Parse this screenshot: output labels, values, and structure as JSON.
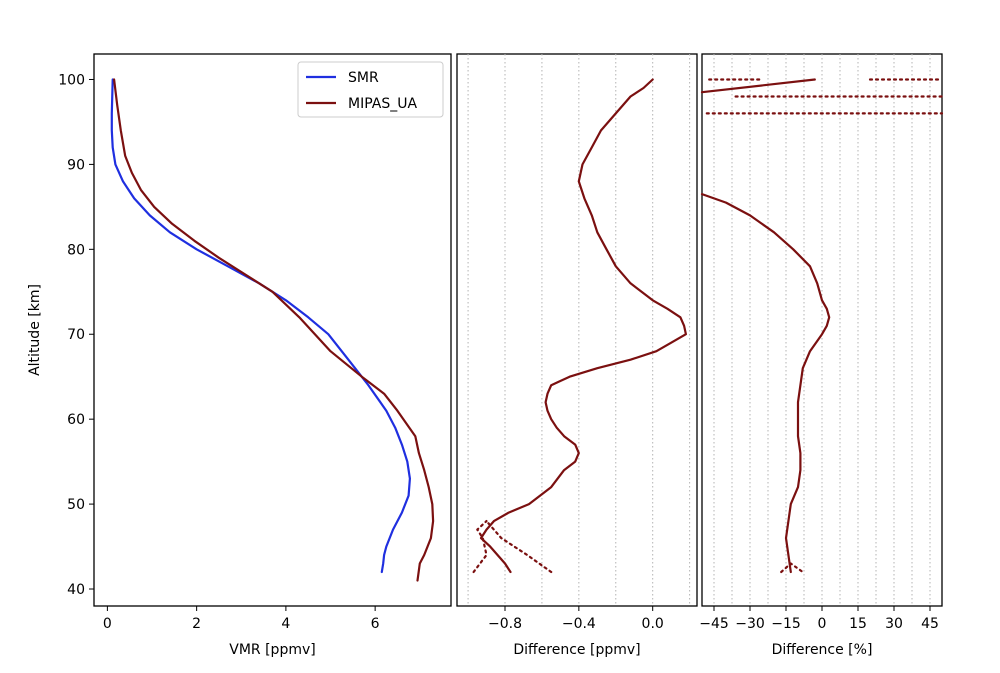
{
  "chart_data": [
    {
      "type": "line",
      "panel": "left",
      "xlabel": "VMR [ppmv]",
      "ylabel": "Altitude [km]",
      "xlim": [
        -0.3,
        7.7
      ],
      "ylim": [
        38,
        103
      ],
      "xticks": [
        0,
        2,
        4,
        6
      ],
      "yticks": [
        40,
        50,
        60,
        70,
        80,
        90,
        100
      ],
      "grid": false,
      "legend": "top-right",
      "series": [
        {
          "name": "SMR",
          "color": "#1f2fe0",
          "style": "solid",
          "x": [
            6.15,
            6.18,
            6.2,
            6.25,
            6.4,
            6.6,
            6.75,
            6.78,
            6.72,
            6.6,
            6.45,
            6.25,
            5.85,
            5.4,
            4.95,
            4.5,
            4.0,
            3.4,
            2.7,
            2.0,
            1.4,
            0.95,
            0.6,
            0.35,
            0.18,
            0.12,
            0.1,
            0.1,
            0.12
          ],
          "y": [
            42,
            43,
            44,
            45,
            47,
            49,
            51,
            53,
            55,
            57,
            59,
            61,
            64,
            67,
            70,
            72,
            74,
            76,
            78,
            80,
            82,
            84,
            86,
            88,
            90,
            92,
            94,
            96,
            100
          ]
        },
        {
          "name": "MIPAS_UA",
          "color": "#7b1010",
          "style": "solid",
          "x": [
            6.95,
            7.0,
            7.1,
            7.25,
            7.3,
            7.28,
            7.2,
            7.1,
            6.98,
            6.9,
            6.5,
            6.2,
            5.7,
            5.0,
            4.3,
            3.7,
            3.1,
            2.5,
            1.95,
            1.45,
            1.05,
            0.75,
            0.55,
            0.4,
            0.3,
            0.22,
            0.15
          ],
          "y": [
            41,
            43,
            44,
            46,
            48,
            50,
            52,
            54,
            56,
            58,
            61,
            63,
            65,
            68,
            72,
            75,
            77,
            79,
            81,
            83,
            85,
            87,
            89,
            91,
            94,
            97,
            100
          ]
        }
      ]
    },
    {
      "type": "line",
      "panel": "middle",
      "xlabel": "Difference [ppmv]",
      "xlim": [
        -1.06,
        0.24
      ],
      "ylim": [
        38,
        103
      ],
      "xticks": [
        -0.8,
        -0.4,
        0.0
      ],
      "xtick_labels": [
        "−0.8",
        "−0.4",
        "0.0"
      ],
      "grid": true,
      "series": [
        {
          "color": "#7b1010",
          "style": "solid",
          "x": [
            -0.77,
            -0.8,
            -0.88,
            -0.93,
            -0.9,
            -0.86,
            -0.78,
            -0.67,
            -0.55,
            -0.48,
            -0.42,
            -0.4,
            -0.42,
            -0.48,
            -0.52,
            -0.55,
            -0.57,
            -0.58,
            -0.57,
            -0.55,
            -0.45,
            -0.3,
            -0.12,
            0.02,
            0.1,
            0.18,
            0.17,
            0.15,
            0.08,
            0.0,
            -0.12,
            -0.2,
            -0.25,
            -0.3,
            -0.33,
            -0.37,
            -0.4,
            -0.38,
            -0.33,
            -0.28,
            -0.2,
            -0.12,
            -0.05,
            0.0
          ],
          "y": [
            42,
            43,
            45,
            46,
            47,
            48,
            49,
            50,
            52,
            54,
            55,
            56,
            57,
            58,
            59,
            60,
            61,
            62,
            63,
            64,
            65,
            66,
            67,
            68,
            69,
            70,
            71,
            72,
            73,
            74,
            76,
            78,
            80,
            82,
            84,
            86,
            88,
            90,
            92,
            94,
            96,
            98,
            99,
            100
          ]
        },
        {
          "color": "#7b1010",
          "style": "dotted",
          "x": [
            -0.97,
            -0.9,
            -0.92,
            -0.95,
            -0.9
          ],
          "y": [
            42,
            44,
            46,
            47,
            48
          ]
        },
        {
          "color": "#7b1010",
          "style": "dotted",
          "x": [
            -0.55,
            -0.68,
            -0.82,
            -0.9
          ],
          "y": [
            42,
            44,
            46,
            48
          ]
        }
      ]
    },
    {
      "type": "line",
      "panel": "right",
      "xlabel": "Difference [%]",
      "xlim": [
        -50,
        50
      ],
      "ylim": [
        38,
        103
      ],
      "xticks": [
        -45,
        -30,
        -15,
        0,
        15,
        30,
        45
      ],
      "xtick_labels": [
        "−45",
        "−30",
        "−15",
        "0",
        "15",
        "30",
        "45"
      ],
      "grid": true,
      "series": [
        {
          "color": "#7b1010",
          "style": "solid",
          "x": [
            -13,
            -14,
            -15,
            -14,
            -13,
            -10,
            -9,
            -9,
            -10,
            -10,
            -10,
            -9,
            -8,
            -5,
            0,
            2,
            3,
            2,
            0,
            -2,
            -5,
            -12,
            -20,
            -30,
            -40,
            -50
          ],
          "y": [
            42,
            44,
            46,
            48,
            50,
            52,
            54,
            56,
            58,
            60,
            62,
            64,
            66,
            68,
            70,
            71,
            72,
            73,
            74,
            76,
            78,
            80,
            82,
            84,
            85.5,
            86.5
          ]
        },
        {
          "color": "#7b1010",
          "style": "solid",
          "x": [
            -50,
            -3
          ],
          "y": [
            98.5,
            100
          ]
        },
        {
          "color": "#7b1010",
          "style": "dotted",
          "x": [
            -17,
            -13,
            -8
          ],
          "y": [
            42,
            43,
            42
          ]
        },
        {
          "color": "#7b1010",
          "style": "dotted",
          "x": [
            -47,
            -25
          ],
          "y": [
            100,
            100
          ]
        },
        {
          "color": "#7b1010",
          "style": "dotted",
          "x": [
            20,
            50
          ],
          "y": [
            100,
            100
          ]
        },
        {
          "color": "#7b1010",
          "style": "dotted",
          "x": [
            -36,
            50
          ],
          "y": [
            98,
            98
          ]
        },
        {
          "color": "#7b1010",
          "style": "dotted",
          "x": [
            -48,
            50
          ],
          "y": [
            96,
            96
          ]
        }
      ]
    }
  ]
}
